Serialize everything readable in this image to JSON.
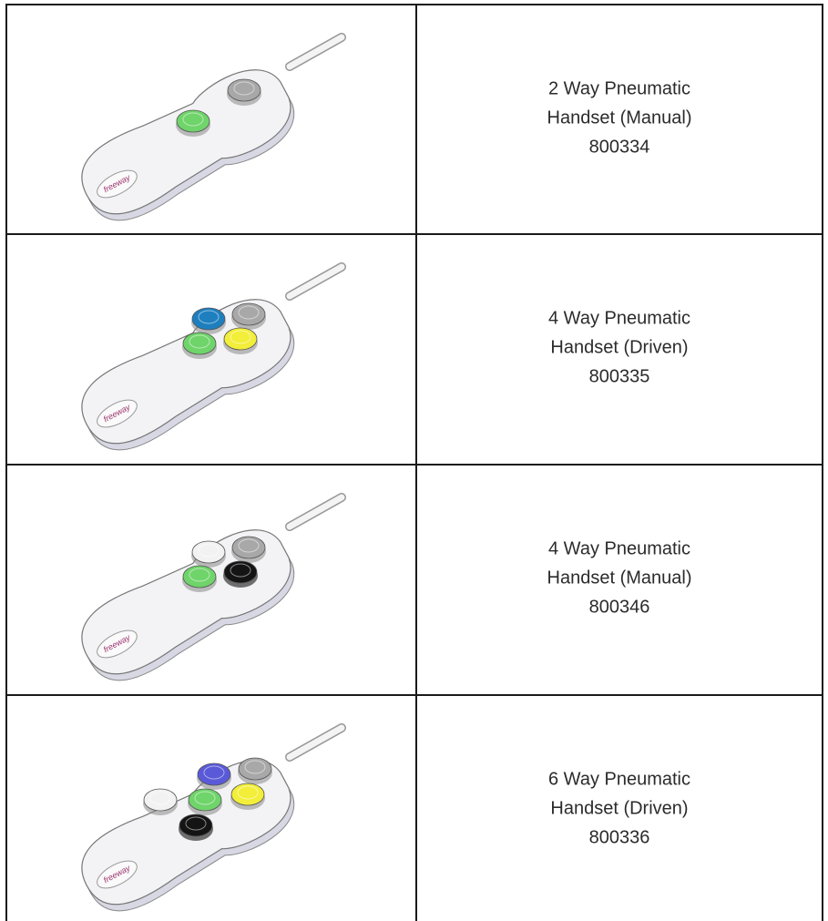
{
  "handset_logo": "freeway",
  "table": {
    "rows": [
      {
        "lines": [
          "2 Way Pneumatic",
          "Handset (Manual)",
          "800334"
        ]
      },
      {
        "lines": [
          "4 Way Pneumatic",
          "Handset (Driven)",
          "800335"
        ]
      },
      {
        "lines": [
          "4 Way Pneumatic",
          "Handset (Manual)",
          "800346"
        ]
      },
      {
        "lines": [
          "6 Way Pneumatic",
          "Handset (Driven)",
          "800336"
        ]
      }
    ]
  }
}
